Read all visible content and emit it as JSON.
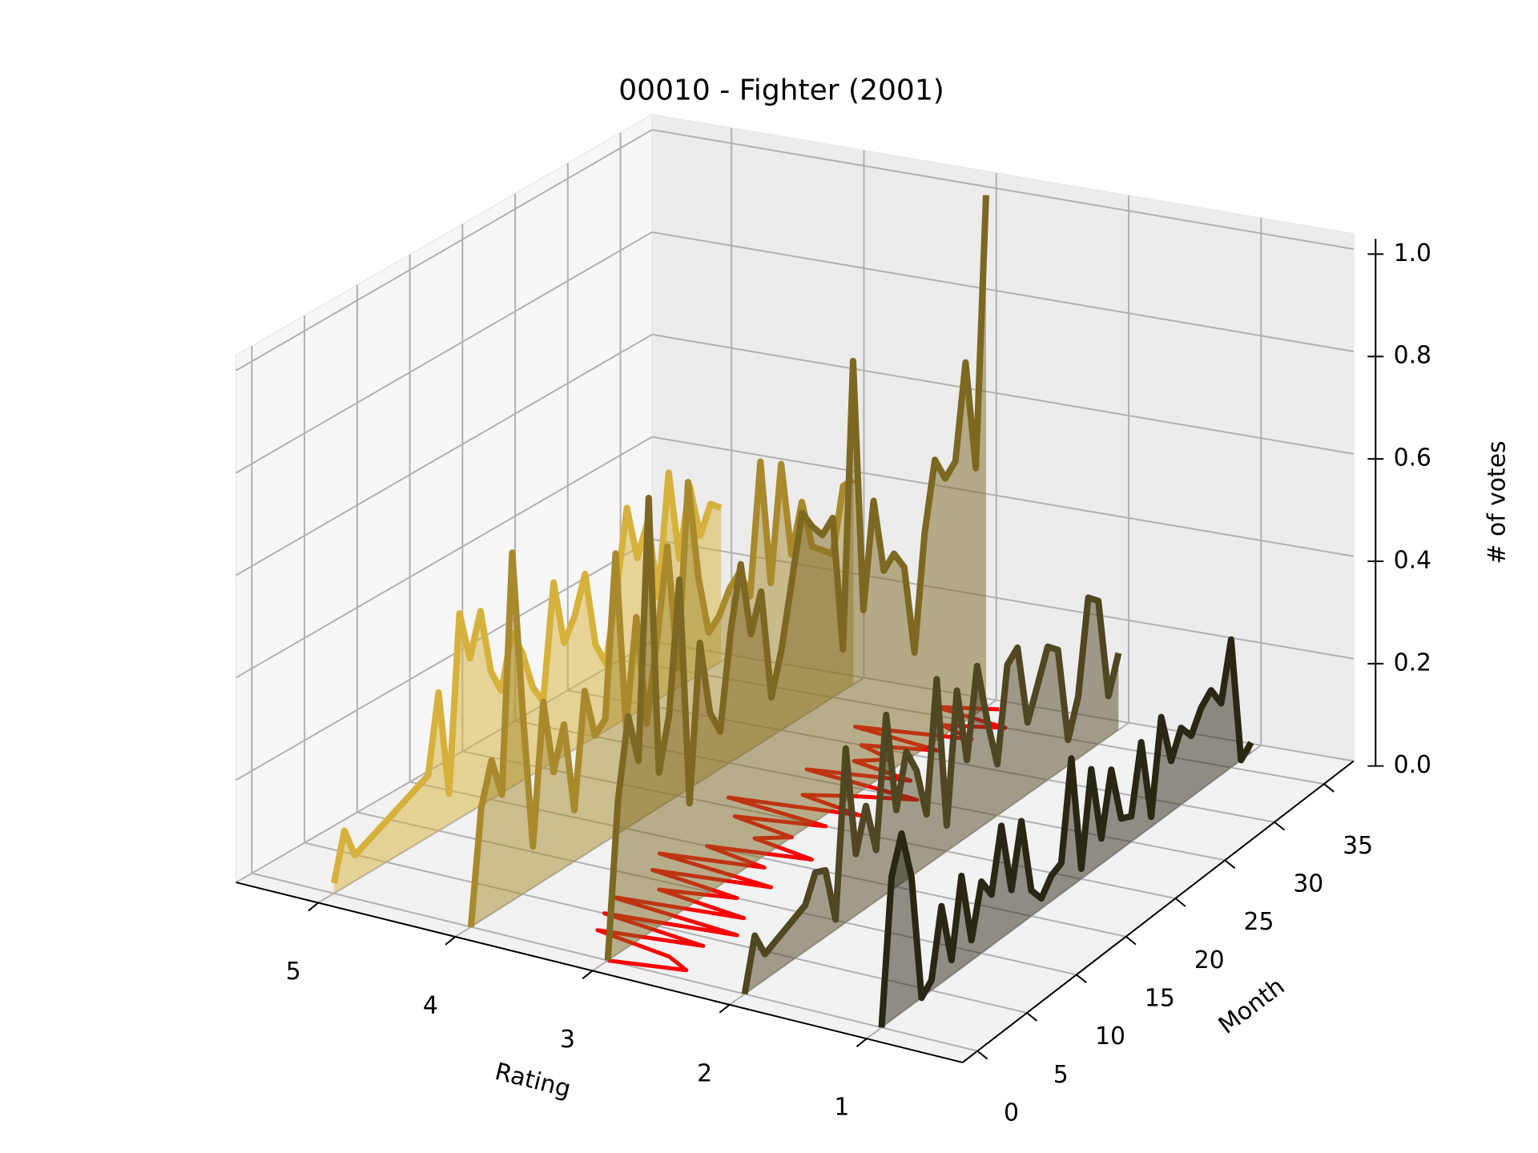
{
  "chart_data": {
    "type": "line3d",
    "title": "00010 - Fighter (2001)",
    "xlabel": "Rating",
    "ylabel": "Month",
    "zlabel": "# of votes",
    "xlim": [
      0.3,
      5.6
    ],
    "ylim": [
      -1.5,
      38
    ],
    "zlim": [
      0,
      1.03
    ],
    "xticks": [
      1,
      2,
      3,
      4,
      5
    ],
    "yticks": [
      0,
      5,
      10,
      15,
      20,
      25,
      30,
      35
    ],
    "zticks": [
      {
        "value": 0,
        "label": "0.0"
      },
      {
        "value": 0.2,
        "label": "0.2"
      },
      {
        "value": 0.4,
        "label": "0.4"
      },
      {
        "value": 0.6,
        "label": "0.6"
      },
      {
        "value": 0.8,
        "label": "0.8"
      },
      {
        "value": 1,
        "label": "1.0"
      }
    ],
    "grid": true,
    "x": [
      0,
      1,
      2,
      3,
      4,
      5,
      6,
      7,
      8,
      9,
      10,
      11,
      12,
      13,
      14,
      15,
      16,
      17,
      18,
      19,
      20,
      21,
      22,
      23,
      24,
      25,
      26,
      27,
      28,
      29,
      30,
      31,
      32,
      33,
      34,
      35,
      36,
      37
    ],
    "series": [
      {
        "rating": 5,
        "color": "#d6b23c",
        "values": [
          0.02,
          0.11,
          0.05,
          0.06,
          0.07,
          0.08,
          0.09,
          0.1,
          0.11,
          0.12,
          0.27,
          0.06,
          0.4,
          0.3,
          0.38,
          0.25,
          0.2,
          0.3,
          0.25,
          0.17,
          0.13,
          0.35,
          0.22,
          0.26,
          0.33,
          0.18,
          0.13,
          0.26,
          0.41,
          0.3,
          0.36,
          0.2,
          0.43,
          0.25,
          0.38,
          0.27,
          0.32,
          0.3
        ]
      },
      {
        "rating": 4,
        "color": "#a8892c",
        "values": [
          0.0,
          0.22,
          0.3,
          0.22,
          0.68,
          0.36,
          0.08,
          0.35,
          0.2,
          0.28,
          0.1,
          0.32,
          0.22,
          0.24,
          0.55,
          0.2,
          0.4,
          0.18,
          0.33,
          0.5,
          0.25,
          0.6,
          0.4,
          0.28,
          0.3,
          0.34,
          0.36,
          0.3,
          0.55,
          0.3,
          0.52,
          0.33,
          0.42,
          0.32,
          0.3,
          0.28,
          0.4,
          0.4
        ]
      },
      {
        "rating": 3,
        "color": "#7d6822",
        "values": [
          0.0,
          0.3,
          0.45,
          0.35,
          0.85,
          0.3,
          0.4,
          0.65,
          0.2,
          0.5,
          0.35,
          0.3,
          0.48,
          0.6,
          0.45,
          0.52,
          0.3,
          0.38,
          0.5,
          0.62,
          0.58,
          0.55,
          0.57,
          0.3,
          0.85,
          0.35,
          0.55,
          0.4,
          0.42,
          0.38,
          0.2,
          0.42,
          0.55,
          0.5,
          0.52,
          0.7,
          0.48,
          1.0
        ]
      },
      {
        "rating": 2,
        "color": "#4f4622",
        "values": [
          0.0,
          0.1,
          0.05,
          0.06,
          0.07,
          0.08,
          0.09,
          0.14,
          0.13,
          0.02,
          0.34,
          0.12,
          0.2,
          0.1,
          0.35,
          0.15,
          0.25,
          0.2,
          0.1,
          0.35,
          0.05,
          0.3,
          0.15,
          0.32,
          0.2,
          0.1,
          0.28,
          0.3,
          0.14,
          0.2,
          0.26,
          0.24,
          0.05,
          0.12,
          0.3,
          0.28,
          0.08,
          0.15
        ]
      },
      {
        "rating": 1,
        "color": "#2a2614",
        "values": [
          0.0,
          0.28,
          0.35,
          0.25,
          0.0,
          0.02,
          0.15,
          0.03,
          0.18,
          0.04,
          0.14,
          0.1,
          0.22,
          0.08,
          0.2,
          0.05,
          0.02,
          0.05,
          0.06,
          0.25,
          0.02,
          0.2,
          0.05,
          0.17,
          0.06,
          0.05,
          0.18,
          0.02,
          0.2,
          0.1,
          0.15,
          0.12,
          0.16,
          0.18,
          0.14,
          0.25,
          0.0,
          0.02
        ]
      }
    ],
    "floor_line": {
      "color": "#ff0000",
      "values": [
        3.0,
        2.5,
        2.7,
        3.3,
        2.6,
        3.4,
        2.5,
        3.5,
        2.6,
        3.3,
        2.8,
        3.5,
        2.7,
        3.6,
        2.9,
        3.4,
        2.7,
        3.2,
        3.0,
        3.5,
        2.9,
        3.7,
        2.8,
        3.3,
        3.0,
        2.6,
        3.5,
        2.8,
        3.3,
        3.1,
        3.4,
        2.9,
        3.6,
        2.8,
        3.1,
        2.7,
        3.3,
        2.9
      ]
    }
  }
}
